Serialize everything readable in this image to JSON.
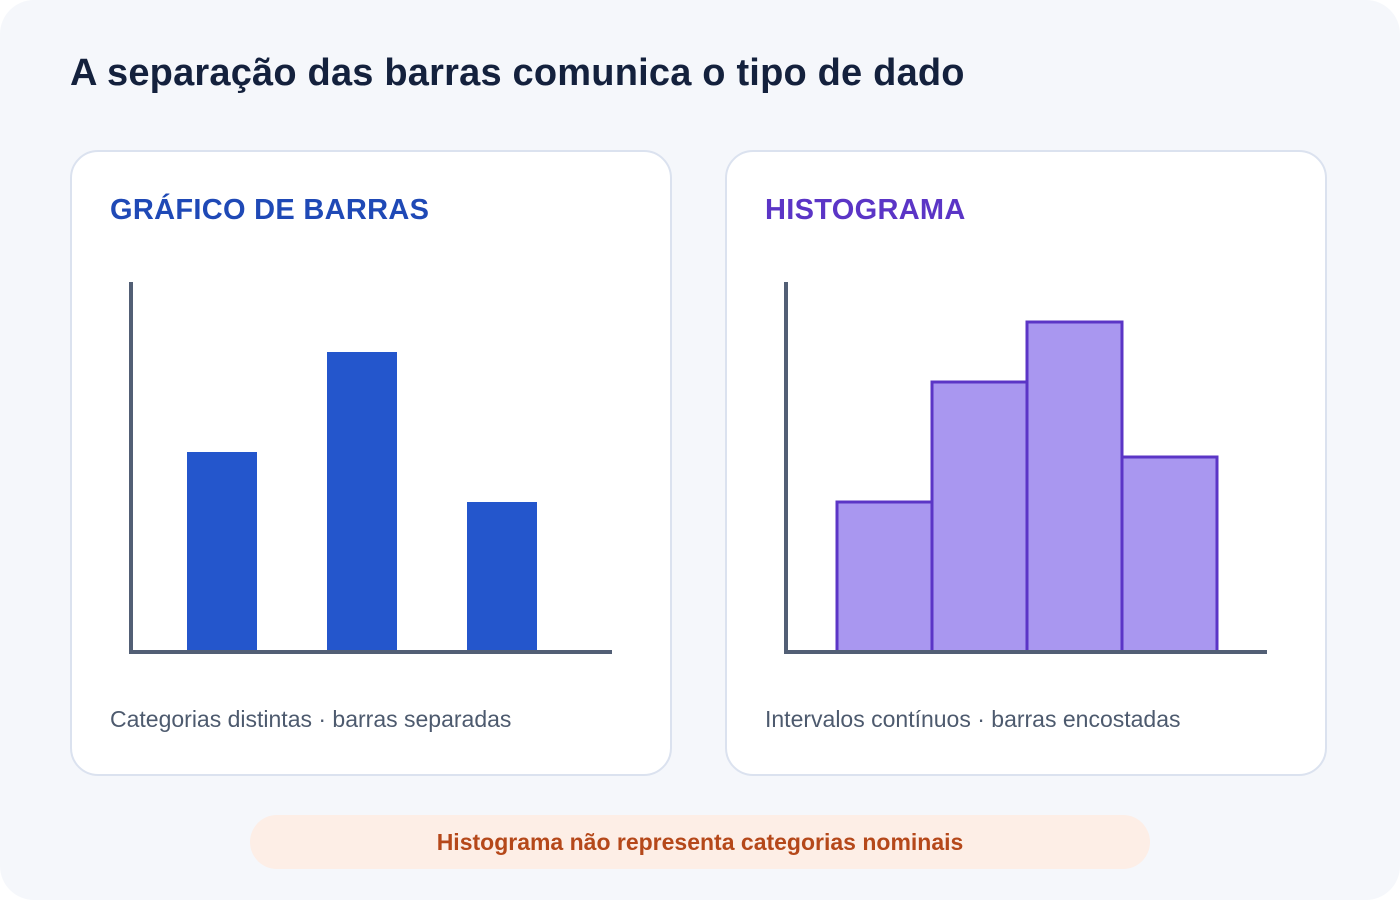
{
  "title": "A separação das barras comunica o tipo de dado",
  "panels": {
    "bar": {
      "title": "GRÁFICO DE BARRAS",
      "caption": "Categorias distintas · barras separadas"
    },
    "histogram": {
      "title": "HISTOGRAMA",
      "caption": "Intervalos contínuos · barras encostadas"
    }
  },
  "note": "Histograma não representa categorias nominais",
  "chart_data": [
    {
      "type": "bar",
      "values": [
        4,
        6,
        3
      ],
      "ylim": [
        0,
        7.4
      ],
      "grid": false,
      "colors": {
        "fill": "#2456cc",
        "axis": "#525f75"
      }
    },
    {
      "type": "bar",
      "values": [
        3,
        5.4,
        6.6,
        3.9
      ],
      "ylim": [
        0,
        7.4
      ],
      "grid": false,
      "colors": {
        "fill": "#a997f0",
        "stroke": "#5b35c6",
        "axis": "#525f75"
      }
    }
  ]
}
